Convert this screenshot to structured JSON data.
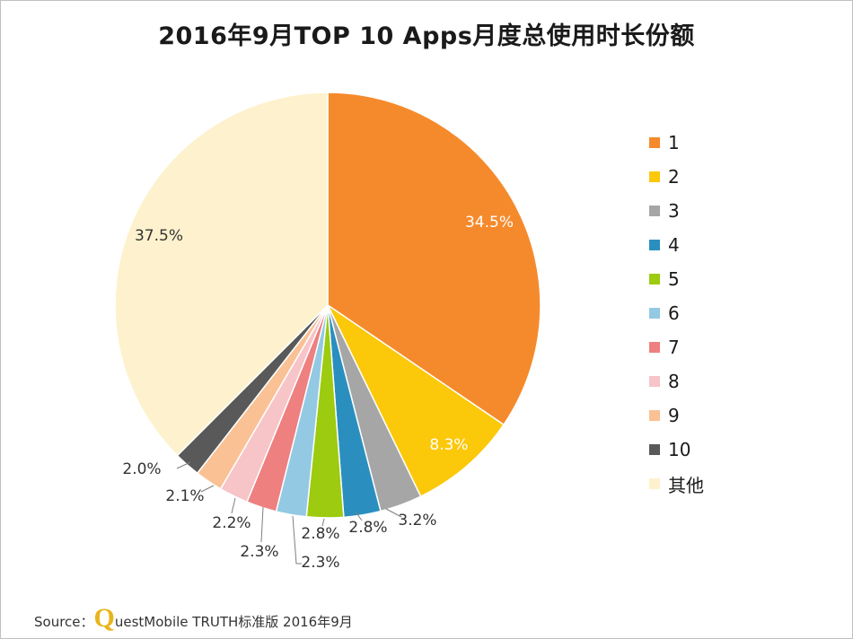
{
  "chart_data": {
    "type": "pie",
    "title": "2016年9月TOP 10 Apps月度总使用时长份额",
    "start_angle_deg": 0,
    "direction": "clockwise",
    "slices": [
      {
        "label": "1",
        "value": 34.5,
        "display": "34.5%",
        "color": "#f58a2c"
      },
      {
        "label": "2",
        "value": 8.3,
        "display": "8.3%",
        "color": "#fbc80a"
      },
      {
        "label": "3",
        "value": 3.2,
        "display": "3.2%",
        "color": "#a6a6a6"
      },
      {
        "label": "4",
        "value": 2.8,
        "display": "2.8%",
        "color": "#2a8fbf"
      },
      {
        "label": "5",
        "value": 2.8,
        "display": "2.8%",
        "color": "#9ccb0f"
      },
      {
        "label": "6",
        "value": 2.3,
        "display": "2.3%",
        "color": "#93c9e2"
      },
      {
        "label": "7",
        "value": 2.3,
        "display": "2.3%",
        "color": "#ee8080"
      },
      {
        "label": "8",
        "value": 2.2,
        "display": "2.2%",
        "color": "#f7c4c8"
      },
      {
        "label": "9",
        "value": 2.1,
        "display": "2.1%",
        "color": "#f9c194"
      },
      {
        "label": "10",
        "value": 2.0,
        "display": "2.0%",
        "color": "#595959"
      },
      {
        "label": "其他",
        "value": 37.5,
        "display": "37.5%",
        "color": "#fdf2cd"
      }
    ],
    "legend_position": "right"
  },
  "source": {
    "prefix": "Source：",
    "logo_letter": "Q",
    "text": "uestMobile TRUTH标准版 2016年9月"
  }
}
